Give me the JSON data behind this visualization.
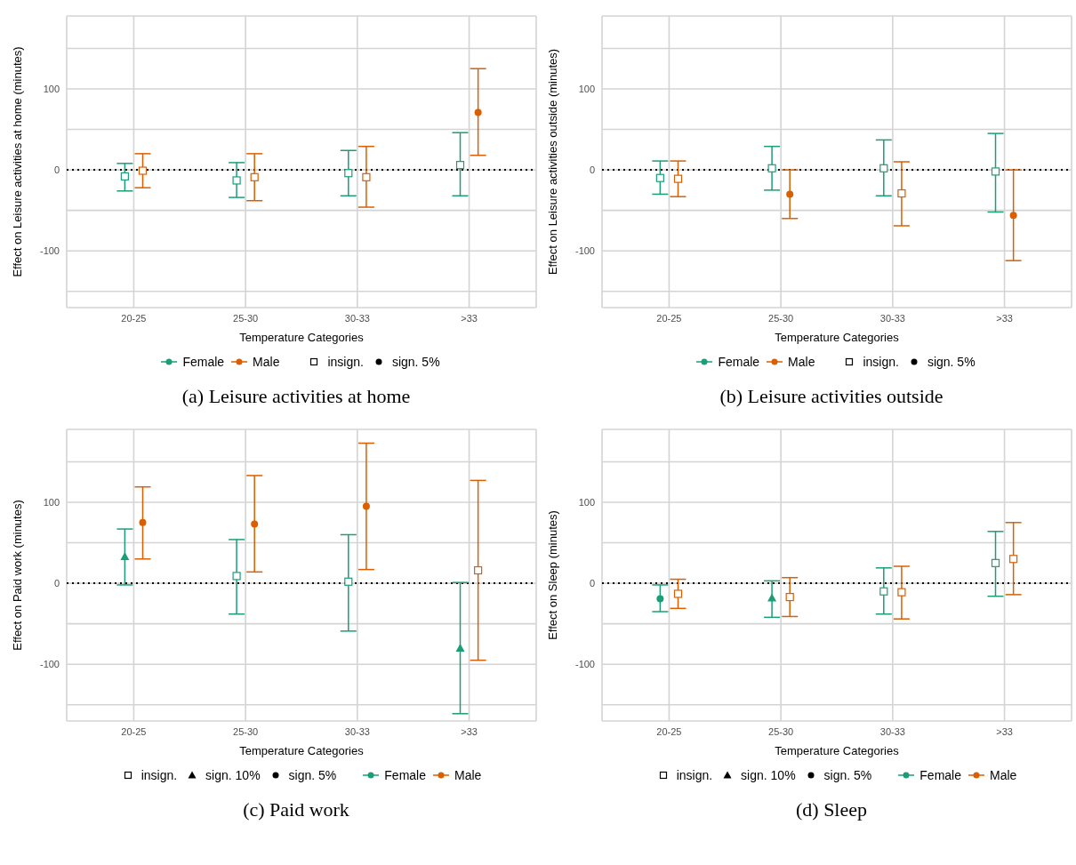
{
  "chart_data": [
    {
      "type": "scatter",
      "title": "(a) Leisure activities at home",
      "xlabel": "Temperature Categories",
      "ylabel": "Effect on Leisure activities at home (minutes)",
      "categories": [
        "20-25",
        "25-30",
        "30-33",
        ">33"
      ],
      "ylim": [
        -170,
        190
      ],
      "yticks": [
        {
          "value": -150,
          "label": null
        },
        -100,
        {
          "value": -50,
          "label": null
        },
        0,
        {
          "value": 50,
          "label": null
        },
        100,
        {
          "value": 150,
          "label": null
        }
      ],
      "grid": true,
      "legend": "bottom",
      "ref_lines": [
        {
          "axis": "y",
          "value": 0,
          "color": "#000000",
          "line_style": "dotted"
        }
      ],
      "series": [
        {
          "name": "Female",
          "color": "#1b9e77",
          "marker": "square",
          "values": [
            -8,
            -13,
            -4,
            6
          ],
          "errors": [
            [
              -26,
              8
            ],
            [
              -34,
              9
            ],
            [
              -32,
              24
            ],
            [
              -32,
              46
            ]
          ]
        },
        {
          "name": "Male",
          "color": "#d95f02",
          "marker": "square",
          "values": [
            -1,
            -9,
            -9,
            null
          ],
          "errors": [
            [
              -22,
              20
            ],
            [
              -38,
              20
            ],
            [
              -46,
              29
            ],
            null
          ]
        },
        {
          "color": "#d95f02",
          "marker": "circle",
          "values": [
            null,
            null,
            null,
            71
          ],
          "errors": [
            null,
            null,
            null,
            [
              18,
              125
            ]
          ]
        },
        {
          "name": "insign.",
          "color": "#000000",
          "marker": "square",
          "values": [
            null,
            null,
            null,
            null
          ]
        },
        {
          "name": "sign. 5%",
          "color": "#000000",
          "marker": "circle",
          "values": [
            null,
            null,
            null,
            null
          ]
        }
      ]
    },
    {
      "type": "scatter",
      "title": "(b) Leisure activities outside",
      "xlabel": "Temperature Categories",
      "ylabel": "Effect on Leisure activities outside (minutes)",
      "categories": [
        "20-25",
        "25-30",
        "30-33",
        ">33"
      ],
      "ylim": [
        -170,
        190
      ],
      "yticks": [
        {
          "value": -150,
          "label": null
        },
        -100,
        {
          "value": -50,
          "label": null
        },
        0,
        {
          "value": 50,
          "label": null
        },
        100,
        {
          "value": 150,
          "label": null
        }
      ],
      "grid": true,
      "legend": "bottom",
      "ref_lines": [
        {
          "axis": "y",
          "value": 0,
          "color": "#000000",
          "line_style": "dotted"
        }
      ],
      "series": [
        {
          "name": "Female",
          "color": "#1b9e77",
          "marker": "square",
          "values": [
            -10,
            2,
            2,
            -2
          ],
          "errors": [
            [
              -30,
              11
            ],
            [
              -25,
              29
            ],
            [
              -32,
              37
            ],
            [
              -52,
              45
            ]
          ]
        },
        {
          "name": "Male",
          "color": "#d95f02",
          "marker": "square",
          "values": [
            -11,
            null,
            -29,
            null
          ],
          "errors": [
            [
              -33,
              11
            ],
            null,
            [
              -69,
              10
            ],
            null
          ]
        },
        {
          "color": "#d95f02",
          "marker": "circle",
          "values": [
            null,
            -30,
            null,
            -56
          ],
          "errors": [
            null,
            [
              -60,
              0
            ],
            null,
            [
              -112,
              0
            ]
          ]
        },
        {
          "name": "insign.",
          "color": "#000000",
          "marker": "square",
          "values": [
            null,
            null,
            null,
            null
          ]
        },
        {
          "name": "sign. 5%",
          "color": "#000000",
          "marker": "circle",
          "values": [
            null,
            null,
            null,
            null
          ]
        }
      ]
    },
    {
      "type": "scatter",
      "title": "(c) Paid work",
      "xlabel": "Temperature Categories",
      "ylabel": "Effect on Paid work (minutes)",
      "categories": [
        "20-25",
        "25-30",
        "30-33",
        ">33"
      ],
      "ylim": [
        -170,
        190
      ],
      "yticks": [
        {
          "value": -150,
          "label": null
        },
        -100,
        {
          "value": -50,
          "label": null
        },
        0,
        {
          "value": 50,
          "label": null
        },
        100,
        {
          "value": 150,
          "label": null
        }
      ],
      "grid": true,
      "legend": "bottom",
      "ref_lines": [
        {
          "axis": "y",
          "value": 0,
          "color": "#000000",
          "line_style": "dotted"
        }
      ],
      "series": [
        {
          "name": "insign.",
          "color": "#000000",
          "marker": "square",
          "values": [
            null,
            null,
            null,
            null
          ]
        },
        {
          "name": "sign. 10%",
          "color": "#000000",
          "marker": "triangle",
          "values": [
            null,
            null,
            null,
            null
          ]
        },
        {
          "name": "sign. 5%",
          "color": "#000000",
          "marker": "circle",
          "values": [
            null,
            null,
            null,
            null
          ]
        },
        {
          "name": "Female",
          "color": "#1b9e77",
          "marker": "triangle",
          "values": [
            33,
            null,
            null,
            -80
          ],
          "errors": [
            [
              -2,
              67
            ],
            null,
            null,
            [
              -161,
              1
            ]
          ]
        },
        {
          "color": "#1b9e77",
          "marker": "square",
          "values": [
            null,
            9,
            2,
            null
          ],
          "errors": [
            null,
            [
              -38,
              54
            ],
            [
              -59,
              60
            ],
            null
          ]
        },
        {
          "name": "Male",
          "color": "#d95f02",
          "marker": "circle",
          "values": [
            75,
            73,
            95,
            null
          ],
          "errors": [
            [
              30,
              119
            ],
            [
              14,
              133
            ],
            [
              17,
              173
            ],
            null
          ]
        },
        {
          "color": "#d95f02",
          "marker": "square",
          "values": [
            null,
            null,
            null,
            16
          ],
          "errors": [
            null,
            null,
            null,
            [
              -95,
              127
            ]
          ]
        }
      ]
    },
    {
      "type": "scatter",
      "title": "(d) Sleep",
      "xlabel": "Temperature Categories",
      "ylabel": "Effect on Sleep (minutes)",
      "categories": [
        "20-25",
        "25-30",
        "30-33",
        ">33"
      ],
      "ylim": [
        -170,
        190
      ],
      "yticks": [
        {
          "value": -150,
          "label": null
        },
        -100,
        {
          "value": -50,
          "label": null
        },
        0,
        {
          "value": 50,
          "label": null
        },
        100,
        {
          "value": 150,
          "label": null
        }
      ],
      "grid": true,
      "legend": "bottom",
      "ref_lines": [
        {
          "axis": "y",
          "value": 0,
          "color": "#000000",
          "line_style": "dotted"
        }
      ],
      "series": [
        {
          "name": "insign.",
          "color": "#000000",
          "marker": "square",
          "values": [
            null,
            null,
            null,
            null
          ]
        },
        {
          "name": "sign. 10%",
          "color": "#000000",
          "marker": "triangle",
          "values": [
            null,
            null,
            null,
            null
          ]
        },
        {
          "name": "sign. 5%",
          "color": "#000000",
          "marker": "circle",
          "values": [
            null,
            null,
            null,
            null
          ]
        },
        {
          "name": "Female",
          "color": "#1b9e77",
          "marker": "circle",
          "values": [
            -19,
            null,
            null,
            null
          ],
          "errors": [
            [
              -35,
              -2
            ],
            null,
            null,
            null
          ]
        },
        {
          "color": "#1b9e77",
          "marker": "triangle",
          "values": [
            null,
            -18,
            null,
            null
          ],
          "errors": [
            null,
            [
              -42,
              3
            ],
            null,
            null
          ]
        },
        {
          "color": "#1b9e77",
          "marker": "square",
          "values": [
            null,
            null,
            -10,
            25
          ],
          "errors": [
            null,
            null,
            [
              -38,
              19
            ],
            [
              -16,
              64
            ]
          ]
        },
        {
          "name": "Male",
          "color": "#d95f02",
          "marker": "square",
          "values": [
            -13,
            -17,
            -11,
            30
          ],
          "errors": [
            [
              -31,
              5
            ],
            [
              -41,
              7
            ],
            [
              -44,
              21
            ],
            [
              -14,
              75
            ]
          ]
        }
      ]
    }
  ]
}
